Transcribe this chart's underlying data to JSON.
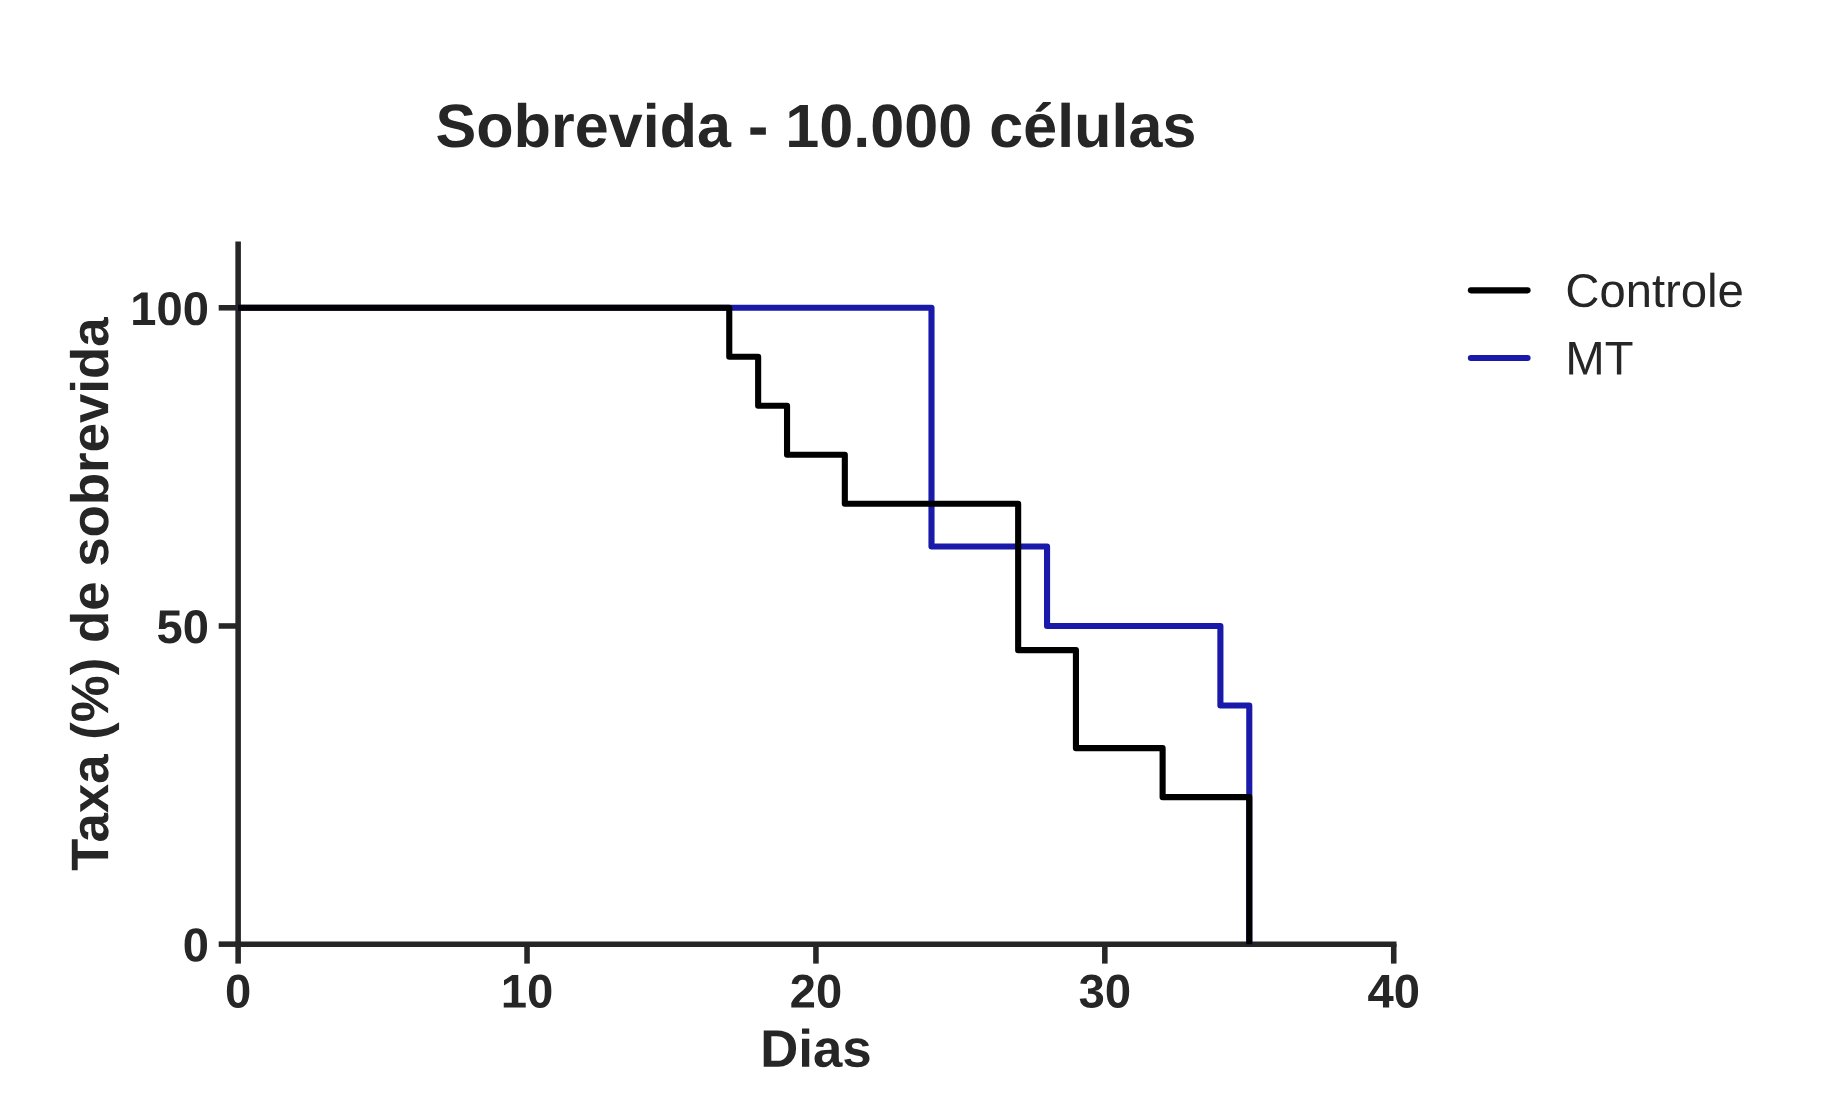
{
  "chart_data": {
    "type": "step",
    "title": "Sobrevida - 10.000 células",
    "xlabel": "Dias",
    "ylabel": "Taxa (%) de sobrevida",
    "series": [
      {
        "name": "Controle",
        "color": "#000000",
        "x": [
          0,
          17,
          18,
          19,
          21,
          27,
          29,
          32,
          35
        ],
        "values": [
          100,
          92.3,
          84.6,
          76.9,
          69.2,
          46.2,
          30.8,
          23.1,
          0
        ]
      },
      {
        "name": "MT",
        "color": "#1a1aaa",
        "x": [
          0,
          24,
          28,
          34,
          35
        ],
        "values": [
          100,
          62.5,
          50,
          37.5,
          0
        ]
      }
    ],
    "xlim": [
      0,
      40
    ],
    "xticks": [
      0,
      10,
      20,
      30,
      40
    ],
    "ylim": [
      0,
      110
    ],
    "yticks": [
      0,
      50,
      100
    ],
    "grid": false,
    "legend": "right",
    "marker": "none",
    "line_style": "solid"
  }
}
